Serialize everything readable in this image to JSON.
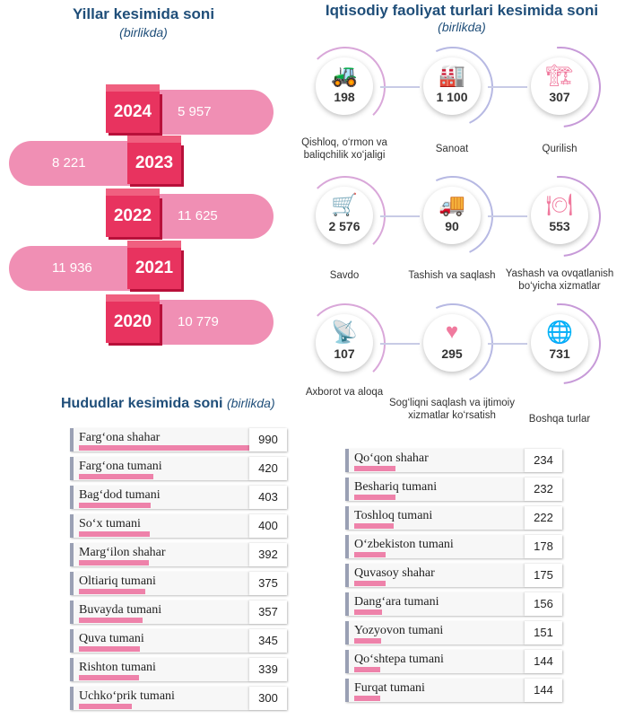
{
  "years": {
    "title": "Yillar kesimida soni",
    "subtitle": "(birlikda)"
  },
  "activities": {
    "title": "Iqtisodiy faoliyat turlari kesimida soni",
    "subtitle": "(birlikda)",
    "items": [
      {
        "value": "198",
        "label": "Qishloq, o‘rmon va baliqchilik xo‘jaligi",
        "icon": "tractor-icon",
        "glyph": "🚜"
      },
      {
        "value": "1 100",
        "label": "Sanoat",
        "icon": "factory-icon",
        "glyph": "🏭"
      },
      {
        "value": "307",
        "label": "Qurilish",
        "icon": "crane-icon",
        "glyph": "🏗"
      },
      {
        "value": "2 576",
        "label": "Savdo",
        "icon": "shopping-cart-icon",
        "glyph": "🛒"
      },
      {
        "value": "90",
        "label": "Tashish va saqlash",
        "icon": "truck-icon",
        "glyph": "🚚"
      },
      {
        "value": "553",
        "label": "Yashash va ovqatlanish bo‘yicha xizmatlar",
        "icon": "plate-cutlery-icon",
        "glyph": "🍽"
      },
      {
        "value": "107",
        "label": "Axborot va aloqa",
        "icon": "antenna-tower-icon",
        "glyph": "📡"
      },
      {
        "value": "295",
        "label": "Sog‘liqni saqlash va ijtimoiy xizmatlar ko‘rsatish",
        "icon": "medical-heart-icon",
        "glyph": "♥"
      },
      {
        "value": "731",
        "label": "Boshqa turlar",
        "icon": "globe-arrow-icon",
        "glyph": "🌐"
      }
    ]
  },
  "regions": {
    "title": "Hududlar kesimida soni",
    "subtitle": "(birlikda)"
  },
  "chart_data": [
    {
      "type": "bar",
      "title": "Yillar kesimida soni",
      "subtitle": "(birlikda)",
      "categories": [
        "2024",
        "2023",
        "2022",
        "2021",
        "2020"
      ],
      "values": [
        5957,
        8221,
        11625,
        11936,
        10779
      ],
      "value_labels": [
        "5 957",
        "8 221",
        "11 625",
        "11 936",
        "10 779"
      ]
    },
    {
      "type": "bar",
      "title": "Hududlar kesimida soni",
      "subtitle": "(birlikda)",
      "categories": [
        "Farg‘ona shahar",
        "Farg‘ona tumani",
        "Bag‘dod tumani",
        "So‘x tumani",
        "Marg‘ilon shahar",
        "Oltiariq tumani",
        "Buvayda tumani",
        "Quva tumani",
        "Rishton tumani",
        "Uchko‘prik tumani",
        "Qo‘qon shahar",
        "Beshariq tumani",
        "Toshloq tumani",
        "O‘zbekiston tumani",
        "Quvasoy shahar",
        "Dang‘ara tumani",
        "Yozyovon tumani",
        "Qo‘shtepa tumani",
        "Furqat tumani"
      ],
      "values": [
        990,
        420,
        403,
        400,
        392,
        375,
        357,
        345,
        339,
        300,
        234,
        232,
        222,
        178,
        175,
        156,
        151,
        144,
        144
      ]
    }
  ]
}
